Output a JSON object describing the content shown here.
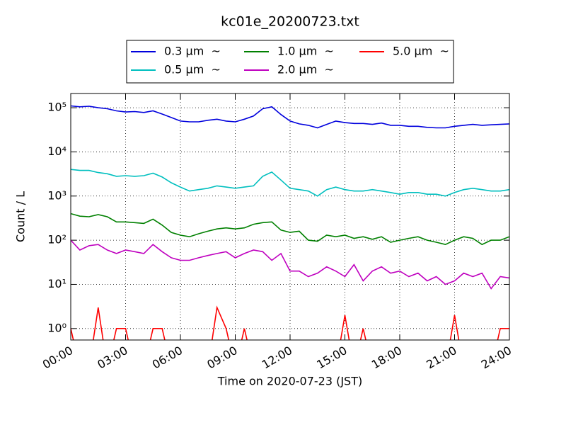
{
  "chart_data": {
    "type": "line",
    "title": "kc01e_20200723.txt",
    "xlabel": "Time on 2020-07-23 (JST)",
    "ylabel": "Count / L",
    "log_y": true,
    "grid": true,
    "legend": "top",
    "xlim": [
      "00:00",
      "24:00"
    ],
    "xticks": [
      "00:00",
      "03:00",
      "06:00",
      "09:00",
      "12:00",
      "15:00",
      "18:00",
      "21:00",
      "24:00"
    ],
    "ylim": [
      0.55,
      210000
    ],
    "yticks": [
      {
        "value": 1,
        "label": "10⁰"
      },
      {
        "value": 10,
        "label": "10¹"
      },
      {
        "value": 100,
        "label": "10²"
      },
      {
        "value": 1000,
        "label": "10³"
      },
      {
        "value": 10000,
        "label": "10⁴"
      },
      {
        "value": 100000,
        "label": "10⁵"
      }
    ],
    "x": [
      "00:00",
      "00:30",
      "01:00",
      "01:30",
      "02:00",
      "02:30",
      "03:00",
      "03:30",
      "04:00",
      "04:30",
      "05:00",
      "05:30",
      "06:00",
      "06:30",
      "07:00",
      "07:30",
      "08:00",
      "08:30",
      "09:00",
      "09:30",
      "10:00",
      "10:30",
      "11:00",
      "11:30",
      "12:00",
      "12:30",
      "13:00",
      "13:30",
      "14:00",
      "14:30",
      "15:00",
      "15:30",
      "16:00",
      "16:30",
      "17:00",
      "17:30",
      "18:00",
      "18:30",
      "19:00",
      "19:30",
      "20:00",
      "20:30",
      "21:00",
      "21:30",
      "22:00",
      "22:30",
      "23:00",
      "23:30",
      "24:00"
    ],
    "series": [
      {
        "name": "0.3 μm  ~",
        "color": "#0000dd",
        "values": [
          110000,
          105000,
          108000,
          100000,
          95000,
          85000,
          80000,
          82000,
          78000,
          85000,
          72000,
          60000,
          50000,
          48000,
          48000,
          52000,
          55000,
          50000,
          48000,
          55000,
          65000,
          95000,
          105000,
          70000,
          50000,
          43000,
          40000,
          35000,
          42000,
          50000,
          46000,
          44000,
          44000,
          42000,
          45000,
          40000,
          40000,
          38000,
          38000,
          36000,
          35000,
          35000,
          38000,
          40000,
          42000,
          40000,
          41000,
          42000,
          43000
        ]
      },
      {
        "name": "0.5 μm  ~",
        "color": "#00bfbf",
        "values": [
          4000,
          3800,
          3800,
          3400,
          3200,
          2800,
          2900,
          2800,
          2900,
          3300,
          2700,
          2000,
          1600,
          1300,
          1400,
          1500,
          1700,
          1600,
          1500,
          1600,
          1700,
          2800,
          3500,
          2300,
          1500,
          1400,
          1300,
          1000,
          1400,
          1600,
          1400,
          1300,
          1300,
          1400,
          1300,
          1200,
          1100,
          1200,
          1200,
          1100,
          1100,
          1000,
          1200,
          1400,
          1500,
          1400,
          1300,
          1300,
          1400
        ]
      },
      {
        "name": "1.0 μm  ~",
        "color": "#008000",
        "values": [
          400,
          350,
          340,
          380,
          340,
          260,
          260,
          250,
          240,
          300,
          220,
          150,
          130,
          120,
          140,
          160,
          180,
          190,
          180,
          190,
          230,
          250,
          260,
          170,
          150,
          160,
          100,
          95,
          130,
          120,
          130,
          110,
          120,
          105,
          120,
          90,
          100,
          110,
          120,
          100,
          90,
          80,
          100,
          120,
          110,
          80,
          100,
          100,
          120
        ]
      },
      {
        "name": "2.0 μm  ~",
        "color": "#bf00bf",
        "values": [
          100,
          60,
          75,
          80,
          60,
          50,
          60,
          55,
          50,
          80,
          55,
          40,
          35,
          35,
          40,
          45,
          50,
          55,
          40,
          50,
          60,
          55,
          35,
          50,
          20,
          20,
          15,
          18,
          25,
          20,
          15,
          28,
          12,
          20,
          25,
          18,
          20,
          15,
          18,
          12,
          15,
          10,
          12,
          18,
          15,
          18,
          8,
          15,
          14
        ]
      },
      {
        "name": "5.0 μm  ~",
        "color": "#ff0000",
        "values": [
          1,
          0,
          0,
          3,
          0,
          1,
          1,
          0,
          0,
          1,
          1,
          0,
          0,
          0,
          0,
          0,
          3,
          1,
          0,
          1,
          0,
          0,
          0,
          0,
          0,
          0,
          0,
          0,
          0,
          0,
          2,
          0,
          1,
          0,
          0,
          0,
          0,
          0,
          0,
          0,
          0,
          0,
          2,
          0,
          0,
          0,
          0,
          1,
          1
        ]
      }
    ]
  }
}
